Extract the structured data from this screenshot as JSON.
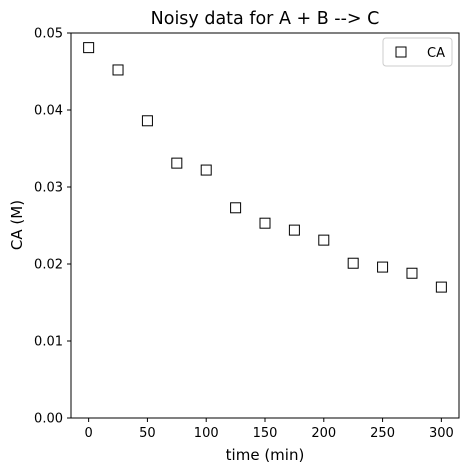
{
  "chart_data": {
    "type": "scatter",
    "title": "Noisy data for A + B --> C",
    "xlabel": "time (min)",
    "ylabel": "CA (M)",
    "xlim": [
      -15,
      315
    ],
    "ylim": [
      0,
      0.05
    ],
    "xticks": [
      0,
      50,
      100,
      150,
      200,
      250,
      300
    ],
    "xtick_labels": [
      "0",
      "50",
      "100",
      "150",
      "200",
      "250",
      "300"
    ],
    "yticks": [
      0.0,
      0.01,
      0.02,
      0.03,
      0.04,
      0.05
    ],
    "ytick_labels": [
      "0.00",
      "0.01",
      "0.02",
      "0.03",
      "0.04",
      "0.05"
    ],
    "grid": false,
    "legend_position": "top-right",
    "series": [
      {
        "name": "CA",
        "marker": "open-square",
        "edge_color": "#000000",
        "x": [
          0,
          25,
          50,
          75,
          100,
          125,
          150,
          175,
          200,
          225,
          250,
          275,
          300
        ],
        "y": [
          0.0481,
          0.0452,
          0.0386,
          0.0331,
          0.0322,
          0.0273,
          0.0253,
          0.0244,
          0.0231,
          0.0201,
          0.0196,
          0.0188,
          0.017
        ]
      }
    ]
  }
}
